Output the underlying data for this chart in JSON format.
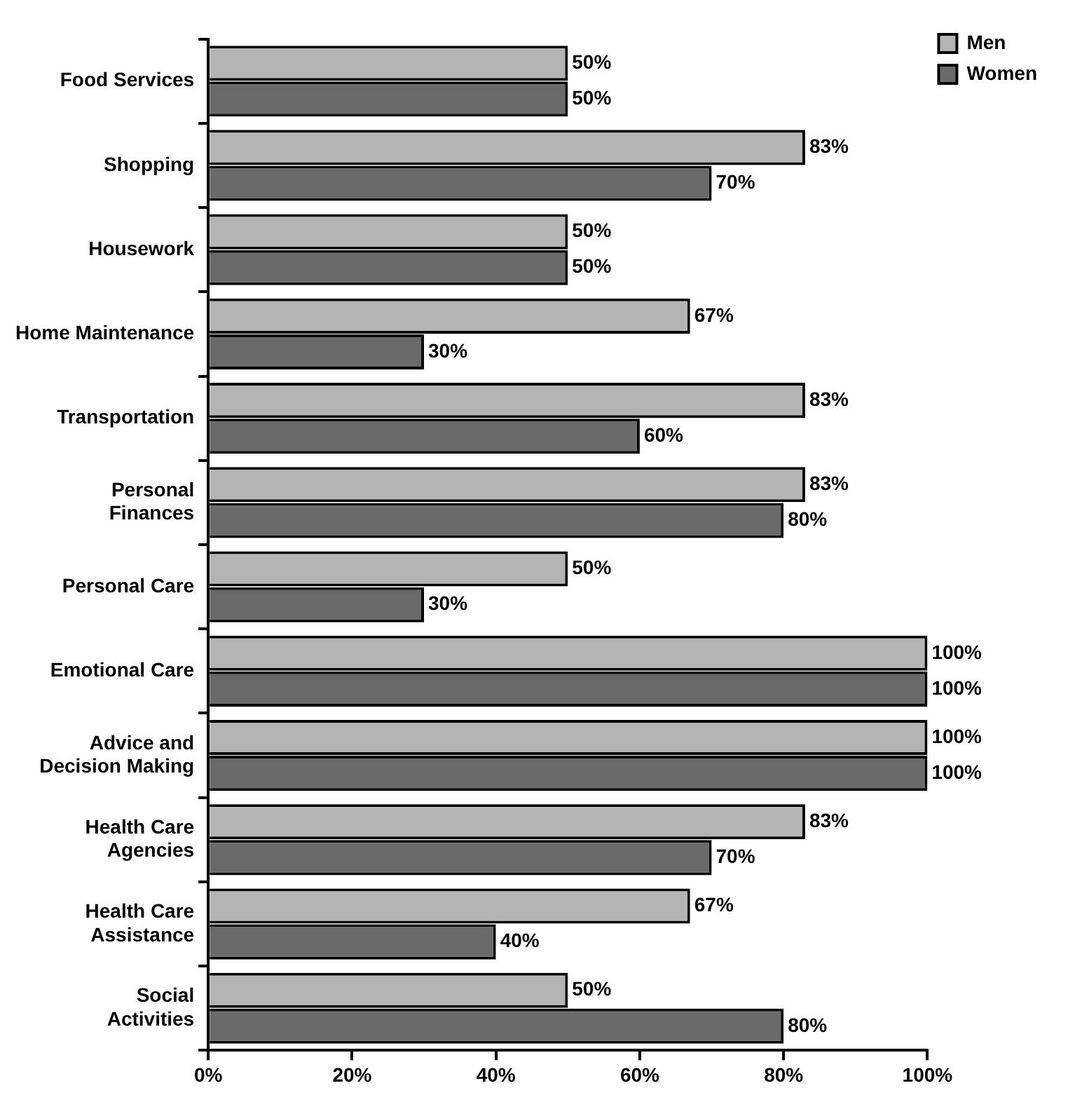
{
  "chart_data": {
    "type": "bar",
    "orientation": "horizontal",
    "categories": [
      "Food Services",
      "Shopping",
      "Housework",
      "Home Maintenance",
      "Transportation",
      "Personal Finances",
      "Personal Care",
      "Emotional Care",
      "Advice and Decision Making",
      "Health Care Agencies",
      "Health Care Assistance",
      "Social Activities"
    ],
    "series": [
      {
        "name": "Men",
        "color": "#b4b4b4",
        "values": [
          50,
          83,
          50,
          67,
          83,
          83,
          50,
          100,
          100,
          83,
          67,
          50
        ],
        "value_labels": [
          "50%",
          "83%",
          "50%",
          "67%",
          "83%",
          "83%",
          "50%",
          "100%",
          "100%",
          "83%",
          "67%",
          "50%"
        ]
      },
      {
        "name": "Women",
        "color": "#6a6a6a",
        "values": [
          50,
          70,
          50,
          30,
          60,
          80,
          30,
          100,
          100,
          70,
          40,
          80
        ],
        "value_labels": [
          "50%",
          "70%",
          "50%",
          "30%",
          "60%",
          "80%",
          "30%",
          "100%",
          "100%",
          "70%",
          "40%",
          "80%"
        ]
      }
    ],
    "xlim": [
      0,
      100
    ],
    "xticks": [
      {
        "value": 0,
        "label": "0%"
      },
      {
        "value": 20,
        "label": "20%"
      },
      {
        "value": 40,
        "label": "40%"
      },
      {
        "value": 60,
        "label": "60%"
      },
      {
        "value": 80,
        "label": "80%"
      },
      {
        "value": 100,
        "label": "100%"
      }
    ],
    "grid": false,
    "legend": "top right"
  }
}
